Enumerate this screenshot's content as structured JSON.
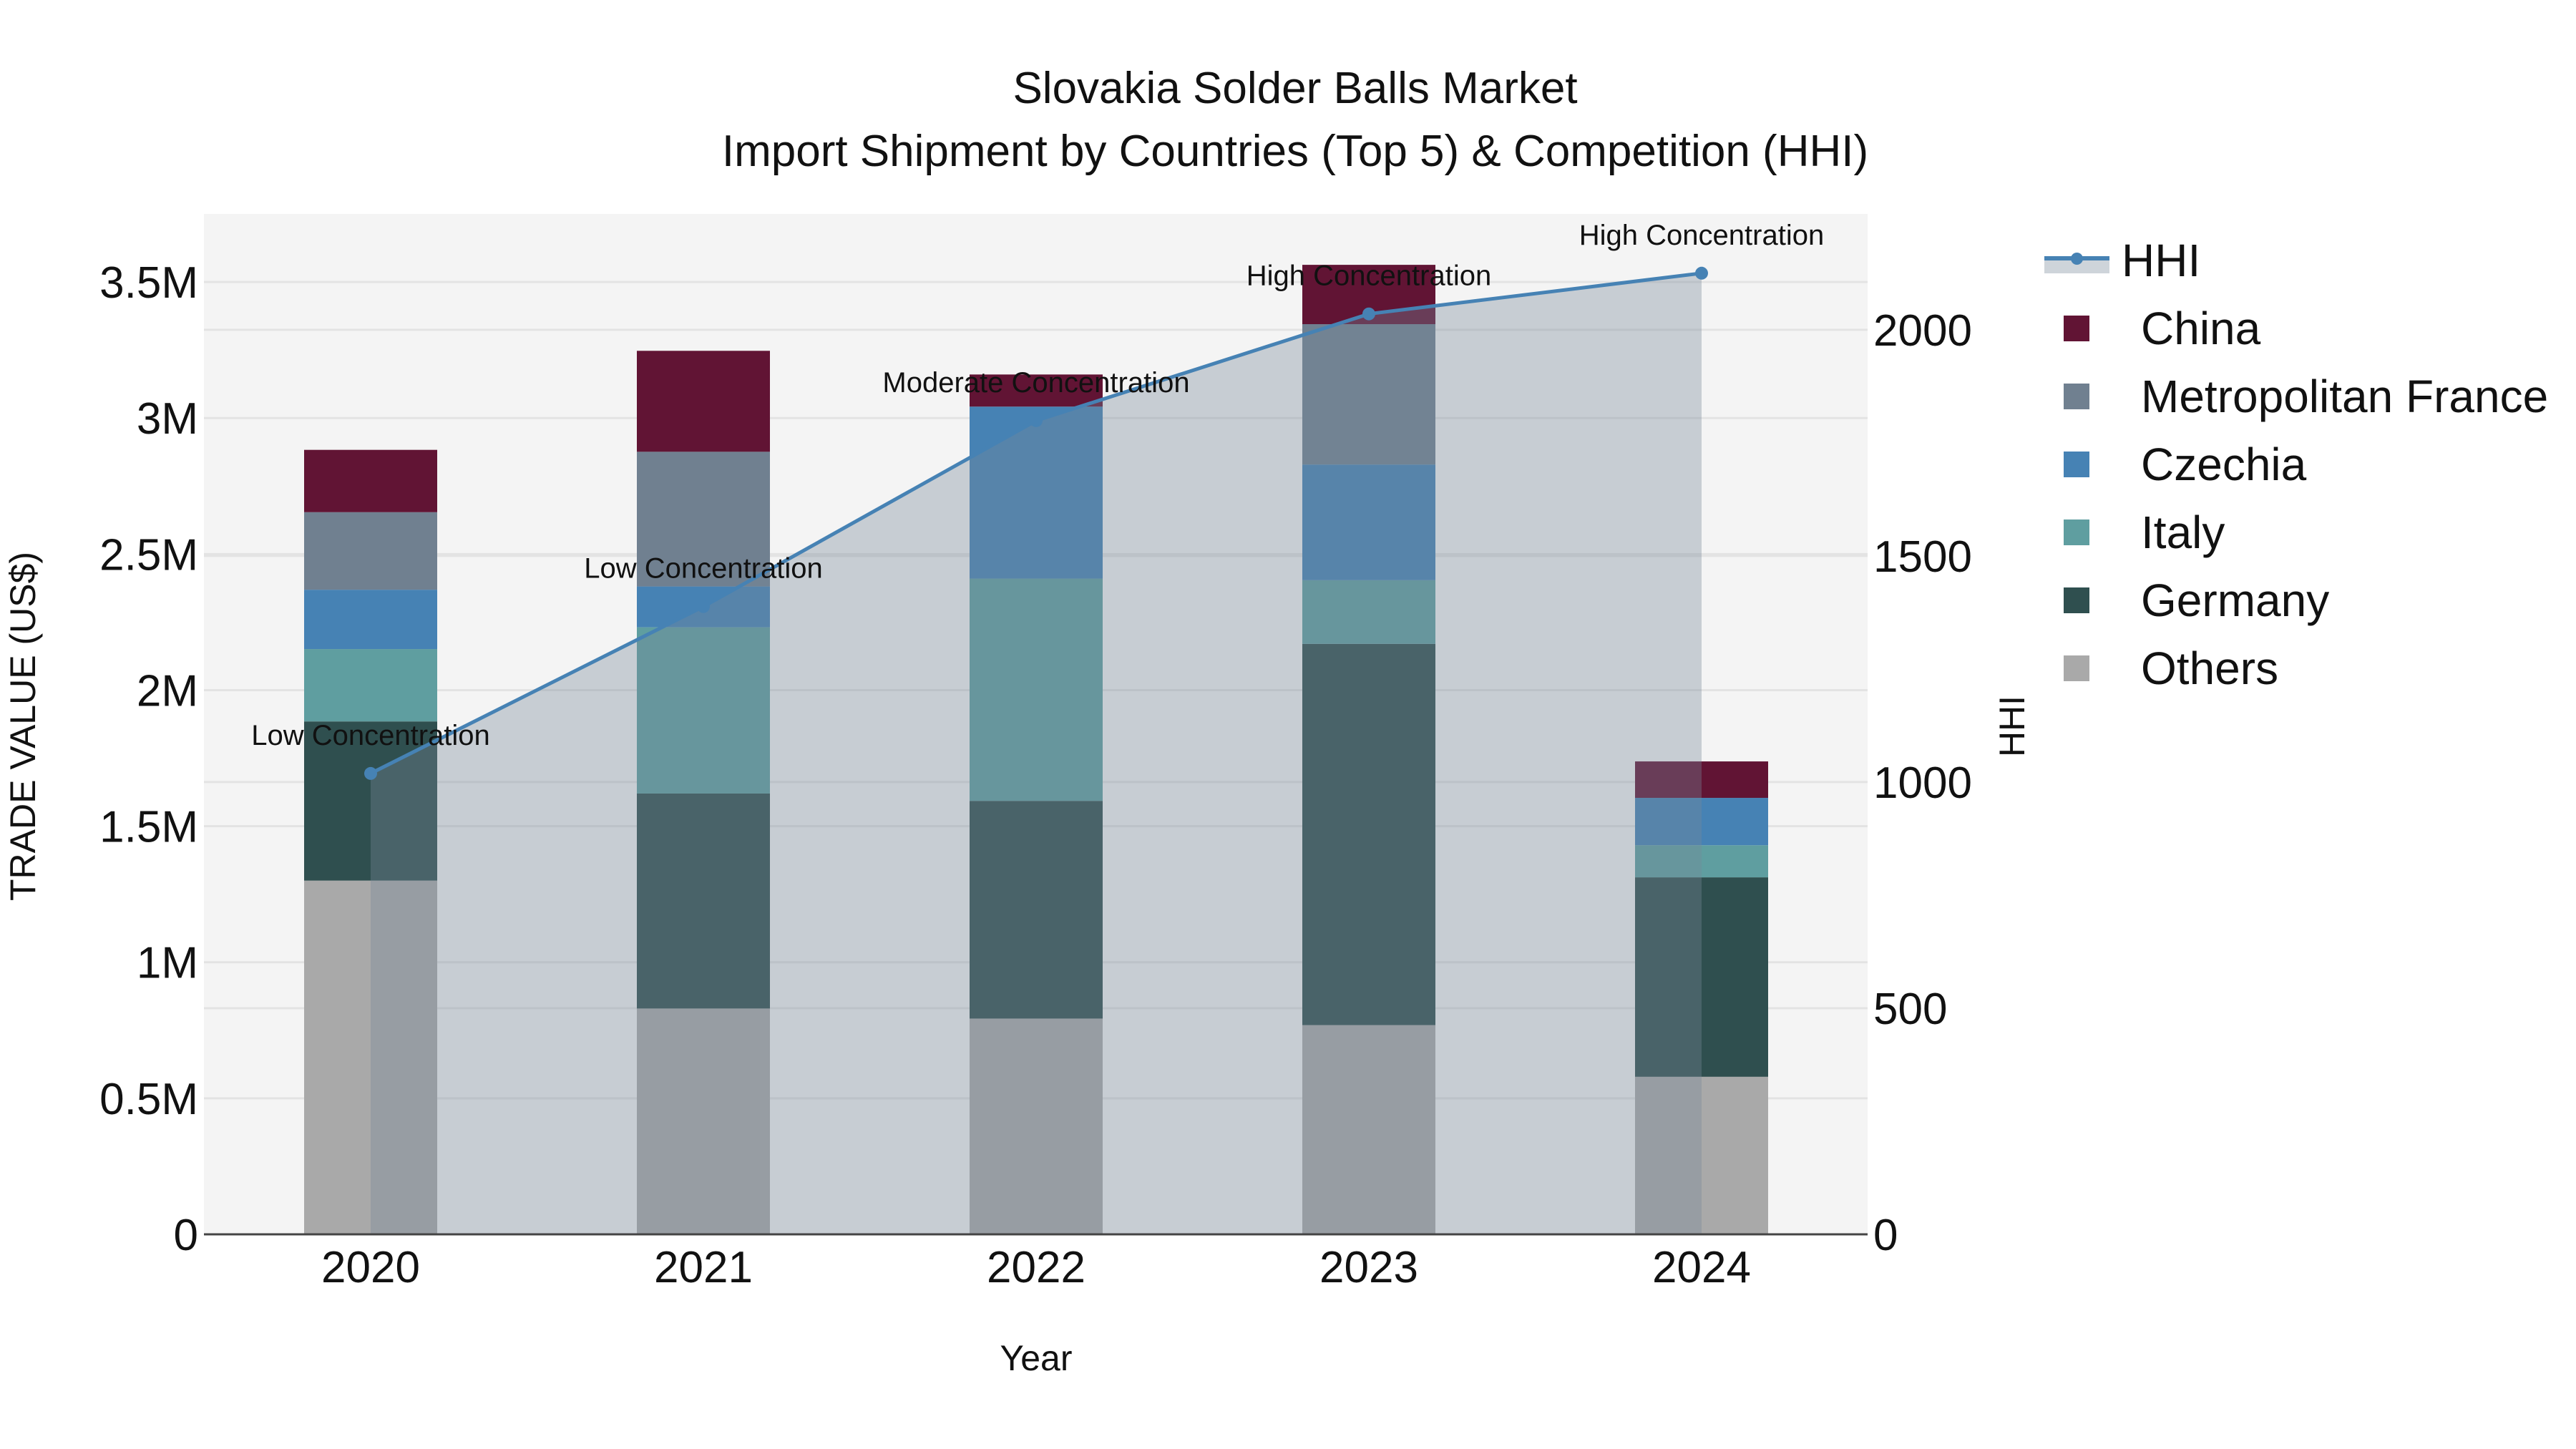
{
  "title": {
    "line1": "Slovakia Solder Balls Market",
    "line2": "Import Shipment by Countries (Top 5) & Competition (HHI)"
  },
  "axes": {
    "x_title": "Year",
    "y_title": "TRADE VALUE (US$)",
    "y2_title": "HHI",
    "y_ticks": [
      {
        "value": 0,
        "label": "0"
      },
      {
        "value": 500000,
        "label": "0.5M"
      },
      {
        "value": 1000000,
        "label": "1M"
      },
      {
        "value": 1500000,
        "label": "1.5M"
      },
      {
        "value": 2000000,
        "label": "2M"
      },
      {
        "value": 2500000,
        "label": "2.5M"
      },
      {
        "value": 3000000,
        "label": "3M"
      },
      {
        "value": 3500000,
        "label": "3.5M"
      }
    ],
    "y2_ticks": [
      {
        "value": 0,
        "label": "0"
      },
      {
        "value": 500,
        "label": "500"
      },
      {
        "value": 1000,
        "label": "1000"
      },
      {
        "value": 1500,
        "label": "1500"
      },
      {
        "value": 2000,
        "label": "2000"
      }
    ]
  },
  "legend": [
    {
      "name": "HHI",
      "type": "line",
      "color": "#4682b4"
    },
    {
      "name": "China",
      "type": "bar",
      "color": "#611434"
    },
    {
      "name": "Metropolitan France",
      "type": "bar",
      "color": "#708090"
    },
    {
      "name": "Czechia",
      "type": "bar",
      "color": "#4682b4"
    },
    {
      "name": "Italy",
      "type": "bar",
      "color": "#5f9ea0"
    },
    {
      "name": "Germany",
      "type": "bar",
      "color": "#2f4f4f"
    },
    {
      "name": "Others",
      "type": "bar",
      "color": "#a9a9a9"
    }
  ],
  "colors": {
    "plot_bg": "#f4f4f4",
    "grid": "#e3e3e3",
    "hhi_line": "#4682b4",
    "hhi_area": "#778899",
    "axis_line": "#444444"
  },
  "chart_data": {
    "type": "bar",
    "subtype": "stacked bar + line (dual axis)",
    "title": "Slovakia Solder Balls Market — Import Shipment by Countries (Top 5) & Competition (HHI)",
    "xlabel": "Year",
    "ylabel": "TRADE VALUE (US$)",
    "y2label": "HHI",
    "ylim": [
      0,
      3750000
    ],
    "y2lim": [
      0,
      2256
    ],
    "grid": true,
    "legend_position": "right",
    "categories": [
      "2020",
      "2021",
      "2022",
      "2023",
      "2024"
    ],
    "series": [
      {
        "name": "Others",
        "type": "bar",
        "color": "#a9a9a9",
        "values": [
          1300000,
          830000,
          793000,
          769000,
          579000
        ]
      },
      {
        "name": "Germany",
        "type": "bar",
        "color": "#2f4f4f",
        "values": [
          585000,
          790000,
          800000,
          1401000,
          733000
        ]
      },
      {
        "name": "Italy",
        "type": "bar",
        "color": "#5f9ea0",
        "values": [
          266000,
          611000,
          817000,
          234000,
          118000
        ]
      },
      {
        "name": "Czechia",
        "type": "bar",
        "color": "#4682b4",
        "values": [
          218000,
          150000,
          632000,
          425000,
          174000
        ]
      },
      {
        "name": "Metropolitan France",
        "type": "bar",
        "color": "#708090",
        "values": [
          285000,
          495000,
          0,
          516000,
          0
        ]
      },
      {
        "name": "China",
        "type": "bar",
        "color": "#611434",
        "values": [
          229000,
          371000,
          118000,
          218000,
          134000
        ]
      },
      {
        "name": "HHI",
        "type": "line",
        "axis": "y2",
        "color": "#4682b4",
        "values": [
          1019,
          1388,
          1799,
          2035,
          2125
        ]
      }
    ],
    "annotations": [
      {
        "x": "2020",
        "text": "Low Concentration"
      },
      {
        "x": "2021",
        "text": "Low Concentration"
      },
      {
        "x": "2022",
        "text": "Moderate Concentration"
      },
      {
        "x": "2023",
        "text": "High Concentration"
      },
      {
        "x": "2024",
        "text": "High Concentration"
      }
    ]
  }
}
